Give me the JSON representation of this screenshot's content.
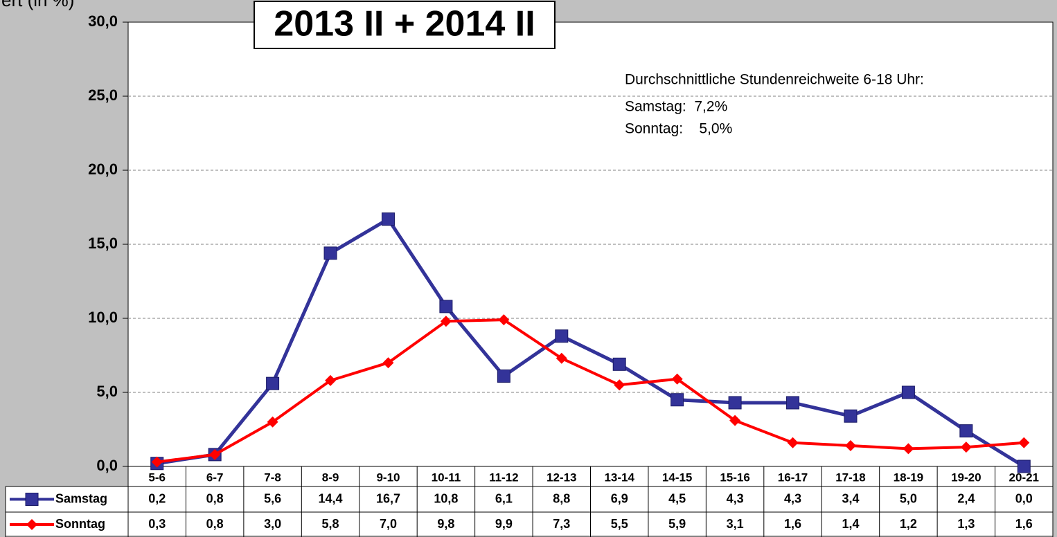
{
  "chart_data": {
    "type": "line",
    "title": "2013 II + 2014 II",
    "y_label": "ert (in %)",
    "annotations": [
      "Durchschnittliche Stundenreichweite 6-18 Uhr:",
      "Samstag:  7,2%",
      "Sonntag:    5,0%"
    ],
    "categories": [
      "5-6",
      "6-7",
      "7-8",
      "8-9",
      "9-10",
      "10-11",
      "11-12",
      "12-13",
      "13-14",
      "14-15",
      "15-16",
      "16-17",
      "17-18",
      "18-19",
      "19-20",
      "20-21"
    ],
    "series": [
      {
        "name": "Samstag",
        "color": "#333399",
        "marker": "square",
        "values": [
          0.2,
          0.8,
          5.6,
          14.4,
          16.7,
          10.8,
          6.1,
          8.8,
          6.9,
          4.5,
          4.3,
          4.3,
          3.4,
          5.0,
          2.4,
          0.0
        ],
        "value_labels": [
          "0,2",
          "0,8",
          "5,6",
          "14,4",
          "16,7",
          "10,8",
          "6,1",
          "8,8",
          "6,9",
          "4,5",
          "4,3",
          "4,3",
          "3,4",
          "5,0",
          "2,4",
          "0,0"
        ]
      },
      {
        "name": "Sonntag",
        "color": "#ff0000",
        "marker": "diamond",
        "values": [
          0.3,
          0.8,
          3.0,
          5.8,
          7.0,
          9.8,
          9.9,
          7.3,
          5.5,
          5.9,
          3.1,
          1.6,
          1.4,
          1.2,
          1.3,
          1.6
        ],
        "value_labels": [
          "0,3",
          "0,8",
          "3,0",
          "5,8",
          "7,0",
          "9,8",
          "9,9",
          "7,3",
          "5,5",
          "5,9",
          "3,1",
          "1,6",
          "1,4",
          "1,2",
          "1,3",
          "1,6"
        ]
      }
    ],
    "ylim": [
      0,
      30
    ],
    "yticks": [
      {
        "value": 0,
        "label": "0,0"
      },
      {
        "value": 5,
        "label": "5,0"
      },
      {
        "value": 10,
        "label": "10,0"
      },
      {
        "value": 15,
        "label": "15,0"
      },
      {
        "value": 20,
        "label": "20,0"
      },
      {
        "value": 25,
        "label": "25,0"
      },
      {
        "value": 30,
        "label": "30,0"
      }
    ],
    "grid": true
  }
}
